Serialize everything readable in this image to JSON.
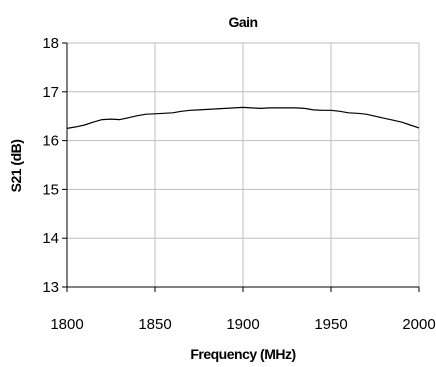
{
  "chart_data": {
    "type": "line",
    "title": "Gain",
    "xlabel": "Frequency (MHz)",
    "ylabel": "S21 (dB)",
    "xlim": [
      1800,
      2000
    ],
    "ylim": [
      13,
      18
    ],
    "xticks": [
      1800,
      1850,
      1900,
      1950,
      2000
    ],
    "yticks": [
      13,
      14,
      15,
      16,
      17,
      18
    ],
    "grid": true,
    "legend": "none",
    "line_color": "#000000",
    "grid_color": "#bfbfbf",
    "series": [
      {
        "x": [
          1800,
          1805,
          1810,
          1815,
          1820,
          1825,
          1830,
          1835,
          1840,
          1845,
          1850,
          1855,
          1860,
          1865,
          1870,
          1875,
          1880,
          1885,
          1890,
          1895,
          1900,
          1905,
          1910,
          1915,
          1920,
          1925,
          1930,
          1935,
          1940,
          1945,
          1950,
          1955,
          1960,
          1965,
          1970,
          1975,
          1980,
          1985,
          1990,
          1995,
          2000
        ],
        "values": [
          16.25,
          16.28,
          16.32,
          16.38,
          16.43,
          16.44,
          16.43,
          16.47,
          16.51,
          16.54,
          16.55,
          16.56,
          16.57,
          16.6,
          16.62,
          16.63,
          16.64,
          16.65,
          16.66,
          16.67,
          16.68,
          16.67,
          16.66,
          16.67,
          16.67,
          16.67,
          16.67,
          16.66,
          16.63,
          16.62,
          16.62,
          16.6,
          16.57,
          16.56,
          16.54,
          16.5,
          16.46,
          16.42,
          16.38,
          16.32,
          16.26
        ]
      }
    ]
  }
}
